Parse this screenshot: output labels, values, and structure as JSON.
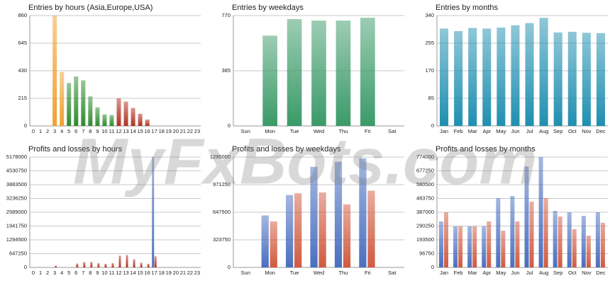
{
  "watermark": "MyFxBots.com",
  "chart_data": [
    {
      "type": "bar",
      "title": "Entries by hours (Asia,Europe,USA)",
      "categories": [
        "0",
        "1",
        "2",
        "3",
        "4",
        "5",
        "6",
        "7",
        "8",
        "9",
        "10",
        "11",
        "12",
        "13",
        "14",
        "15",
        "16",
        "17",
        "18",
        "19",
        "20",
        "21",
        "22",
        "23"
      ],
      "values": [
        0,
        0,
        0,
        860,
        420,
        335,
        385,
        355,
        230,
        145,
        90,
        85,
        215,
        190,
        140,
        95,
        50,
        0,
        0,
        0,
        0,
        0,
        0,
        0
      ],
      "colors": [
        "#2e8b2e",
        "#2e8b2e",
        "#2e8b2e",
        "#f0a030",
        "#f0a030",
        "#2e8b2e",
        "#2e8b2e",
        "#2e8b2e",
        "#2e8b2e",
        "#2e8b2e",
        "#2e8b2e",
        "#2e8b2e",
        "#b03020",
        "#b03020",
        "#b03020",
        "#b03020",
        "#b03020",
        "#2e8b2e",
        "#2e8b2e",
        "#2e8b2e",
        "#2e8b2e",
        "#2e8b2e",
        "#2e8b2e",
        "#2e8b2e"
      ],
      "ylim": [
        0,
        860
      ],
      "yticks": [
        0,
        215,
        430,
        645,
        860
      ],
      "grid": true
    },
    {
      "type": "bar",
      "title": "Entries by weekdays",
      "categories": [
        "Sun",
        "Mon",
        "Tue",
        "Wed",
        "Thu",
        "Fri",
        "Sat"
      ],
      "values": [
        0,
        630,
        745,
        735,
        735,
        755,
        0
      ],
      "color": "#3a9a68",
      "ylim": [
        0,
        770
      ],
      "yticks": [
        0,
        385,
        770
      ],
      "grid": true
    },
    {
      "type": "bar",
      "title": "Entries by months",
      "categories": [
        "Jan",
        "Feb",
        "Mar",
        "Apr",
        "May",
        "Jun",
        "Jul",
        "Aug",
        "Sep",
        "Oct",
        "Nov",
        "Dec"
      ],
      "values": [
        300,
        292,
        302,
        300,
        303,
        310,
        317,
        333,
        288,
        290,
        287,
        286
      ],
      "color": "#1f8fb0",
      "ylim": [
        0,
        340
      ],
      "yticks": [
        0,
        85,
        170,
        255,
        340
      ],
      "grid": true
    },
    {
      "type": "bar",
      "title": "Profits and losses by hours",
      "categories": [
        "0",
        "1",
        "2",
        "3",
        "4",
        "5",
        "6",
        "7",
        "8",
        "9",
        "10",
        "11",
        "12",
        "13",
        "14",
        "15",
        "16",
        "17",
        "18",
        "19",
        "20",
        "21",
        "22",
        "23"
      ],
      "series": [
        {
          "color": "#4a6fc0",
          "values": [
            0,
            0,
            0,
            0,
            0,
            0,
            0,
            0,
            0,
            0,
            0,
            0,
            0,
            0,
            0,
            0,
            0,
            5178000,
            0,
            0,
            0,
            0,
            0,
            0
          ]
        },
        {
          "color": "#b03020",
          "values": [
            0,
            0,
            0,
            80000,
            0,
            0,
            180000,
            250000,
            260000,
            200000,
            170000,
            200000,
            550000,
            580000,
            380000,
            220000,
            170000,
            520000,
            0,
            0,
            0,
            0,
            0,
            0
          ]
        }
      ],
      "ylim": [
        0,
        5178000
      ],
      "yticks": [
        0,
        647250,
        1294500,
        1941750,
        2589000,
        3236250,
        3883500,
        4530750,
        5178000
      ],
      "grid": true
    },
    {
      "type": "bar",
      "title": "Profits and losses by weekdays",
      "categories": [
        "Sun",
        "Mon",
        "Tue",
        "Wed",
        "Thu",
        "Fri",
        "Sat"
      ],
      "series": [
        {
          "color": "#4a6fc0",
          "values": [
            0,
            610000,
            850000,
            1180000,
            1240000,
            1280000,
            0
          ]
        },
        {
          "color": "#d05a40",
          "values": [
            0,
            540000,
            870000,
            880000,
            740000,
            900000,
            0
          ]
        }
      ],
      "ylim": [
        0,
        1295000
      ],
      "yticks": [
        0,
        323750,
        647500,
        971250,
        1295000
      ],
      "grid": true
    },
    {
      "type": "bar",
      "title": "Profits and losses by months",
      "categories": [
        "Jan",
        "Feb",
        "Mar",
        "Apr",
        "May",
        "Jun",
        "Jul",
        "Aug",
        "Sep",
        "Oct",
        "Nov",
        "Dec"
      ],
      "series": [
        {
          "color": "#4a6fc0",
          "values": [
            322500,
            288000,
            288000,
            288000,
            486000,
            501000,
            709000,
            774000,
            397000,
            387000,
            362000,
            387000
          ]
        },
        {
          "color": "#d05a40",
          "values": [
            387000,
            288000,
            288000,
            322500,
            258000,
            322500,
            461000,
            486000,
            357000,
            268000,
            223000,
            313000
          ]
        }
      ],
      "ylim": [
        0,
        774000
      ],
      "yticks": [
        0,
        96750,
        193500,
        290250,
        387000,
        483750,
        580500,
        677250,
        774000
      ],
      "grid": true
    }
  ]
}
